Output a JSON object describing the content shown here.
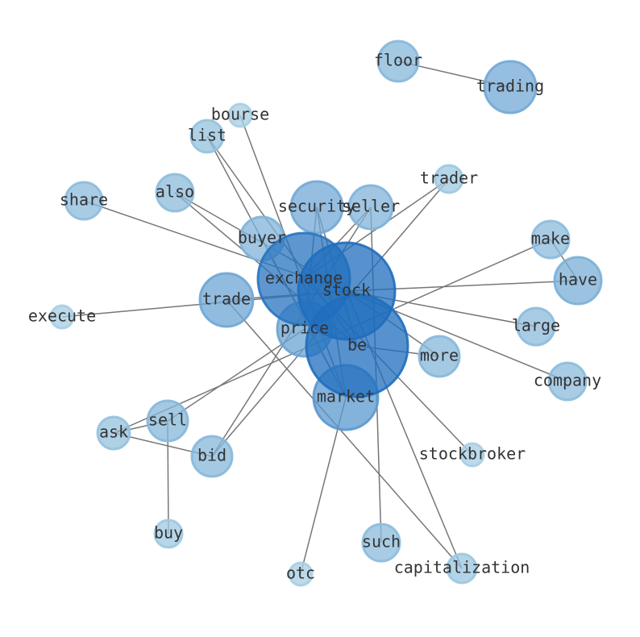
{
  "nodes": [
    {
      "label": "stock"
    },
    {
      "label": "be"
    },
    {
      "label": "exchange"
    },
    {
      "label": "market"
    },
    {
      "label": "price"
    },
    {
      "label": "trade"
    },
    {
      "label": "security"
    },
    {
      "label": "seller"
    },
    {
      "label": "buyer"
    },
    {
      "label": "more"
    },
    {
      "label": "have"
    },
    {
      "label": "make"
    },
    {
      "label": "bid"
    },
    {
      "label": "sell"
    },
    {
      "label": "ask"
    },
    {
      "label": "also"
    },
    {
      "label": "list"
    },
    {
      "label": "bourse"
    },
    {
      "label": "share"
    },
    {
      "label": "execute"
    },
    {
      "label": "trader"
    },
    {
      "label": "floor"
    },
    {
      "label": "trading"
    },
    {
      "label": "large"
    },
    {
      "label": "company"
    },
    {
      "label": "stockbroker"
    },
    {
      "label": "such"
    },
    {
      "label": "capitalization"
    },
    {
      "label": "otc"
    },
    {
      "label": "buy"
    }
  ],
  "edges": [
    [
      "floor",
      "trading"
    ],
    [
      "make",
      "have"
    ],
    [
      "stock",
      "have"
    ],
    [
      "stock",
      "large"
    ],
    [
      "stock",
      "company"
    ],
    [
      "stock",
      "execute"
    ],
    [
      "share",
      "stock"
    ],
    [
      "bourse",
      "market"
    ],
    [
      "list",
      "market"
    ],
    [
      "list",
      "be"
    ],
    [
      "also",
      "be"
    ],
    [
      "also",
      "stock"
    ],
    [
      "bid",
      "ask"
    ],
    [
      "ask",
      "sell"
    ],
    [
      "sell",
      "buy"
    ],
    [
      "ask",
      "make"
    ],
    [
      "sell",
      "price"
    ],
    [
      "bid",
      "seller"
    ],
    [
      "bid",
      "trader"
    ],
    [
      "exchange",
      "stockbroker"
    ],
    [
      "market",
      "otc"
    ],
    [
      "seller",
      "such"
    ],
    [
      "trade",
      "capitalization"
    ],
    [
      "stock",
      "capitalization"
    ],
    [
      "stock",
      "more"
    ],
    [
      "be",
      "more"
    ],
    [
      "security",
      "market"
    ],
    [
      "security",
      "be"
    ],
    [
      "buyer",
      "market"
    ],
    [
      "trade",
      "stock"
    ],
    [
      "exchange",
      "seller"
    ],
    [
      "price",
      "security"
    ],
    [
      "exchange",
      "trader"
    ]
  ]
}
